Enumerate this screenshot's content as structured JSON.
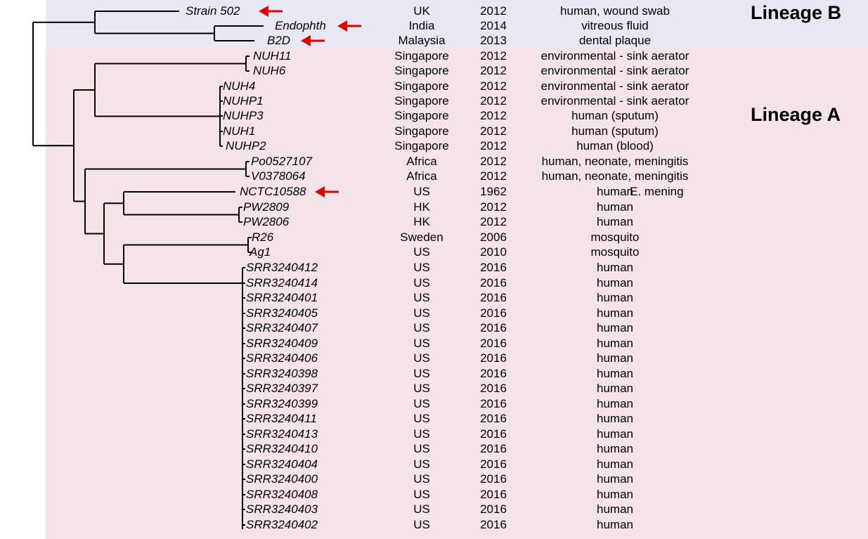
{
  "lineages": {
    "b": "Lineage B",
    "a": "Lineage A"
  },
  "note": "E. mening",
  "colors": {
    "lineage_b_bg": "#e8e8f5",
    "lineage_a_bg": "#f5e4e7",
    "arrow": "#e00000",
    "branch": "#000000"
  },
  "strains": [
    {
      "name": "Strain 502",
      "country": "UK",
      "year": "2012",
      "source": "human, wound swab",
      "arrow": true
    },
    {
      "name": "Endophth",
      "country": "India",
      "year": "2014",
      "source": "vitreous fluid",
      "arrow": true
    },
    {
      "name": "B2D",
      "country": "Malaysia",
      "year": "2013",
      "source": "dental plaque",
      "arrow": true
    },
    {
      "name": "NUH11",
      "country": "Singapore",
      "year": "2012",
      "source": "environmental - sink aerator"
    },
    {
      "name": "NUH6",
      "country": "Singapore",
      "year": "2012",
      "source": "environmental - sink aerator"
    },
    {
      "name": "NUH4",
      "country": "Singapore",
      "year": "2012",
      "source": "environmental - sink aerator"
    },
    {
      "name": "NUHP1",
      "country": "Singapore",
      "year": "2012",
      "source": "environmental - sink aerator"
    },
    {
      "name": "NUHP3",
      "country": "Singapore",
      "year": "2012",
      "source": "human (sputum)"
    },
    {
      "name": "NUH1",
      "country": "Singapore",
      "year": "2012",
      "source": "human (sputum)"
    },
    {
      "name": "NUHP2",
      "country": "Singapore",
      "year": "2012",
      "source": "human (blood)"
    },
    {
      "name": "Po0527107",
      "country": "Africa",
      "year": "2012",
      "source": "human, neonate, meningitis"
    },
    {
      "name": "V0378064",
      "country": "Africa",
      "year": "2012",
      "source": "human, neonate, meningitis"
    },
    {
      "name": "NCTC10588",
      "country": "US",
      "year": "1962",
      "source": "human",
      "arrow": true
    },
    {
      "name": "PW2809",
      "country": "HK",
      "year": "2012",
      "source": "human"
    },
    {
      "name": "PW2806",
      "country": "HK",
      "year": "2012",
      "source": "human"
    },
    {
      "name": "R26",
      "country": "Sweden",
      "year": "2006",
      "source": "mosquito"
    },
    {
      "name": "Ag1",
      "country": "US",
      "year": "2010",
      "source": "mosquito"
    },
    {
      "name": "SRR3240412",
      "country": "US",
      "year": "2016",
      "source": "human"
    },
    {
      "name": "SRR3240414",
      "country": "US",
      "year": "2016",
      "source": "human"
    },
    {
      "name": "SRR3240401",
      "country": "US",
      "year": "2016",
      "source": "human"
    },
    {
      "name": "SRR3240405",
      "country": "US",
      "year": "2016",
      "source": "human"
    },
    {
      "name": "SRR3240407",
      "country": "US",
      "year": "2016",
      "source": "human"
    },
    {
      "name": "SRR3240409",
      "country": "US",
      "year": "2016",
      "source": "human"
    },
    {
      "name": "SRR3240406",
      "country": "US",
      "year": "2016",
      "source": "human"
    },
    {
      "name": "SRR3240398",
      "country": "US",
      "year": "2016",
      "source": "human"
    },
    {
      "name": "SRR3240397",
      "country": "US",
      "year": "2016",
      "source": "human"
    },
    {
      "name": "SRR3240399",
      "country": "US",
      "year": "2016",
      "source": "human"
    },
    {
      "name": "SRR3240411",
      "country": "US",
      "year": "2016",
      "source": "human"
    },
    {
      "name": "SRR3240413",
      "country": "US",
      "year": "2016",
      "source": "human"
    },
    {
      "name": "SRR3240410",
      "country": "US",
      "year": "2016",
      "source": "human"
    },
    {
      "name": "SRR3240404",
      "country": "US",
      "year": "2016",
      "source": "human"
    },
    {
      "name": "SRR3240400",
      "country": "US",
      "year": "2016",
      "source": "human"
    },
    {
      "name": "SRR3240408",
      "country": "US",
      "year": "2016",
      "source": "human"
    },
    {
      "name": "SRR3240403",
      "country": "US",
      "year": "2016",
      "source": "human"
    },
    {
      "name": "SRR3240402",
      "country": "US",
      "year": "2016",
      "source": "human"
    }
  ]
}
